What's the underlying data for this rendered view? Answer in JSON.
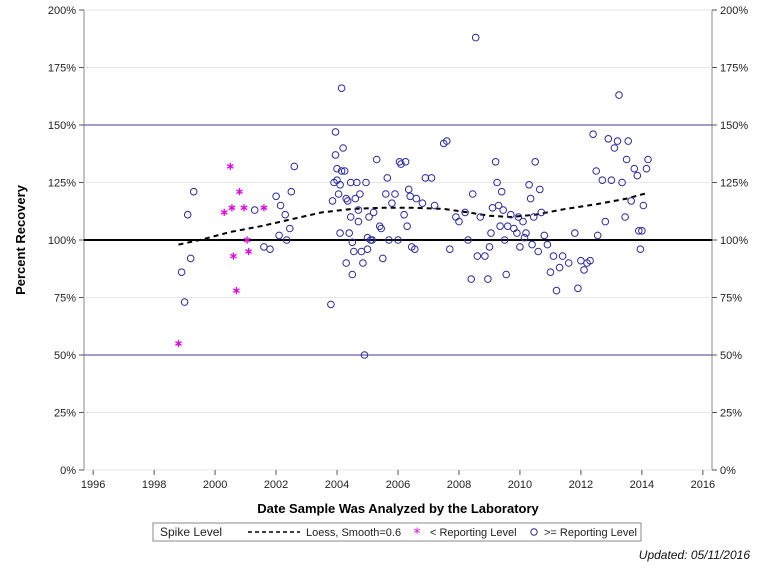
{
  "chart_data": {
    "type": "scatter",
    "xlabel": "Date Sample Was Analyzed by the Laboratory",
    "ylabel": "Percent Recovery",
    "xlim": [
      1995.7,
      2016.3
    ],
    "ylim": [
      0,
      200
    ],
    "x_ticks": [
      1996,
      1998,
      2000,
      2002,
      2004,
      2006,
      2008,
      2010,
      2012,
      2014,
      2016
    ],
    "y_ticks": [
      0,
      25,
      50,
      75,
      100,
      125,
      150,
      175,
      200
    ],
    "y_tick_suffix": "%",
    "reference_lines": [
      {
        "y": 50,
        "color": "#3b3b8f",
        "weight": "thin"
      },
      {
        "y": 100,
        "color": "#000000",
        "weight": "thick"
      },
      {
        "y": 150,
        "color": "#3b3b8f",
        "weight": "thin"
      }
    ],
    "grid": true,
    "legend": {
      "title": "Spike Level",
      "placement": "bottom",
      "entries": [
        {
          "label": "Loess, Smooth=0.6",
          "symbol": "dashed-line"
        },
        {
          "label": "< Reporting Level",
          "symbol": "star"
        },
        {
          "label": ">= Reporting Level",
          "symbol": "circle"
        }
      ]
    },
    "colors": {
      "circle": "#2b2b9e",
      "star": "#e000e0",
      "loess": "#000000"
    },
    "series": [
      {
        "name": "Loess, Smooth=0.6",
        "kind": "line",
        "points": [
          [
            1998.8,
            98
          ],
          [
            1999.5,
            100
          ],
          [
            2000.5,
            103.5
          ],
          [
            2001.5,
            106
          ],
          [
            2002.5,
            109
          ],
          [
            2003.5,
            112
          ],
          [
            2004.5,
            113.5
          ],
          [
            2005.5,
            114
          ],
          [
            2006.5,
            114
          ],
          [
            2007.5,
            113.5
          ],
          [
            2008.3,
            112
          ],
          [
            2009,
            110.5
          ],
          [
            2009.7,
            110
          ],
          [
            2010.5,
            111
          ],
          [
            2011.5,
            113.5
          ],
          [
            2012.5,
            115.5
          ],
          [
            2013.5,
            118
          ],
          [
            2014.2,
            120.5
          ]
        ]
      },
      {
        "name": "< Reporting Level",
        "kind": "star",
        "points": [
          [
            1998.8,
            55
          ],
          [
            2000.3,
            112
          ],
          [
            2000.5,
            132
          ],
          [
            2000.55,
            114
          ],
          [
            2000.6,
            93
          ],
          [
            2000.7,
            78
          ],
          [
            2000.8,
            121
          ],
          [
            2000.95,
            114
          ],
          [
            2001.05,
            100
          ],
          [
            2001.1,
            95
          ],
          [
            2001.6,
            114
          ]
        ]
      },
      {
        "name": ">= Reporting Level",
        "kind": "circle",
        "points": [
          [
            1998.9,
            86
          ],
          [
            1999.0,
            73
          ],
          [
            1999.1,
            111
          ],
          [
            1999.2,
            92
          ],
          [
            1999.3,
            121
          ],
          [
            2001.3,
            113
          ],
          [
            2001.6,
            97
          ],
          [
            2001.8,
            96
          ],
          [
            2002.0,
            119
          ],
          [
            2002.1,
            102
          ],
          [
            2002.15,
            115
          ],
          [
            2002.3,
            111
          ],
          [
            2002.35,
            100
          ],
          [
            2002.45,
            105
          ],
          [
            2002.5,
            121
          ],
          [
            2002.6,
            132
          ],
          [
            2003.8,
            72
          ],
          [
            2003.85,
            117
          ],
          [
            2003.9,
            125
          ],
          [
            2003.95,
            147
          ],
          [
            2003.95,
            137
          ],
          [
            2004.0,
            131
          ],
          [
            2004.0,
            126
          ],
          [
            2004.05,
            120
          ],
          [
            2004.1,
            103
          ],
          [
            2004.1,
            124
          ],
          [
            2004.15,
            130
          ],
          [
            2004.15,
            166
          ],
          [
            2004.2,
            140
          ],
          [
            2004.25,
            130
          ],
          [
            2004.3,
            118
          ],
          [
            2004.3,
            90
          ],
          [
            2004.35,
            117
          ],
          [
            2004.4,
            103
          ],
          [
            2004.45,
            125
          ],
          [
            2004.45,
            110
          ],
          [
            2004.5,
            99
          ],
          [
            2004.5,
            85
          ],
          [
            2004.55,
            95
          ],
          [
            2004.6,
            118
          ],
          [
            2004.65,
            125
          ],
          [
            2004.7,
            113
          ],
          [
            2004.7,
            108
          ],
          [
            2004.75,
            120
          ],
          [
            2004.8,
            95
          ],
          [
            2004.85,
            90
          ],
          [
            2004.9,
            50
          ],
          [
            2004.95,
            125
          ],
          [
            2005.0,
            101
          ],
          [
            2005.0,
            96
          ],
          [
            2005.05,
            110
          ],
          [
            2005.1,
            100
          ],
          [
            2005.15,
            100
          ],
          [
            2005.2,
            112
          ],
          [
            2005.3,
            135
          ],
          [
            2005.4,
            106
          ],
          [
            2005.45,
            105
          ],
          [
            2005.5,
            92
          ],
          [
            2005.6,
            120
          ],
          [
            2005.65,
            127
          ],
          [
            2005.7,
            100
          ],
          [
            2005.8,
            116
          ],
          [
            2005.9,
            120
          ],
          [
            2006.0,
            100
          ],
          [
            2006.05,
            134
          ],
          [
            2006.1,
            133
          ],
          [
            2006.2,
            111
          ],
          [
            2006.25,
            134
          ],
          [
            2006.3,
            106
          ],
          [
            2006.35,
            122
          ],
          [
            2006.4,
            119
          ],
          [
            2006.45,
            97
          ],
          [
            2006.55,
            96
          ],
          [
            2006.6,
            118
          ],
          [
            2006.8,
            116
          ],
          [
            2006.9,
            127
          ],
          [
            2007.1,
            127
          ],
          [
            2007.2,
            115
          ],
          [
            2007.5,
            142
          ],
          [
            2007.6,
            143
          ],
          [
            2007.7,
            96
          ],
          [
            2007.9,
            110
          ],
          [
            2008.0,
            108
          ],
          [
            2008.2,
            112
          ],
          [
            2008.3,
            100
          ],
          [
            2008.4,
            83
          ],
          [
            2008.45,
            120
          ],
          [
            2008.55,
            188
          ],
          [
            2008.6,
            93
          ],
          [
            2008.7,
            110
          ],
          [
            2008.85,
            93
          ],
          [
            2008.95,
            83
          ],
          [
            2009.0,
            97
          ],
          [
            2009.05,
            103
          ],
          [
            2009.1,
            114
          ],
          [
            2009.2,
            134
          ],
          [
            2009.25,
            125
          ],
          [
            2009.3,
            115
          ],
          [
            2009.35,
            106
          ],
          [
            2009.4,
            121
          ],
          [
            2009.45,
            113
          ],
          [
            2009.5,
            100
          ],
          [
            2009.55,
            85
          ],
          [
            2009.6,
            106
          ],
          [
            2009.7,
            111
          ],
          [
            2009.8,
            105
          ],
          [
            2009.9,
            103
          ],
          [
            2009.95,
            110
          ],
          [
            2010.0,
            97
          ],
          [
            2010.1,
            108
          ],
          [
            2010.15,
            101
          ],
          [
            2010.2,
            103
          ],
          [
            2010.3,
            124
          ],
          [
            2010.35,
            118
          ],
          [
            2010.4,
            98
          ],
          [
            2010.45,
            110
          ],
          [
            2010.5,
            134
          ],
          [
            2010.6,
            95
          ],
          [
            2010.65,
            122
          ],
          [
            2010.7,
            112
          ],
          [
            2010.8,
            102
          ],
          [
            2010.9,
            98
          ],
          [
            2011.0,
            86
          ],
          [
            2011.1,
            93
          ],
          [
            2011.2,
            78
          ],
          [
            2011.3,
            88
          ],
          [
            2011.4,
            93
          ],
          [
            2011.6,
            90
          ],
          [
            2011.8,
            103
          ],
          [
            2011.9,
            79
          ],
          [
            2012.0,
            91
          ],
          [
            2012.1,
            87
          ],
          [
            2012.2,
            90
          ],
          [
            2012.3,
            91
          ],
          [
            2012.4,
            146
          ],
          [
            2012.5,
            130
          ],
          [
            2012.55,
            102
          ],
          [
            2012.7,
            126
          ],
          [
            2012.8,
            108
          ],
          [
            2012.9,
            144
          ],
          [
            2013.0,
            126
          ],
          [
            2013.1,
            140
          ],
          [
            2013.2,
            143
          ],
          [
            2013.25,
            163
          ],
          [
            2013.35,
            125
          ],
          [
            2013.45,
            110
          ],
          [
            2013.5,
            135
          ],
          [
            2013.55,
            143
          ],
          [
            2013.65,
            117
          ],
          [
            2013.75,
            131
          ],
          [
            2013.85,
            128
          ],
          [
            2013.9,
            104
          ],
          [
            2013.95,
            96
          ],
          [
            2014.0,
            104
          ],
          [
            2014.05,
            115
          ],
          [
            2014.15,
            131
          ],
          [
            2014.2,
            135
          ]
        ]
      }
    ]
  },
  "footer": {
    "updated": "Updated: 05/11/2016"
  }
}
